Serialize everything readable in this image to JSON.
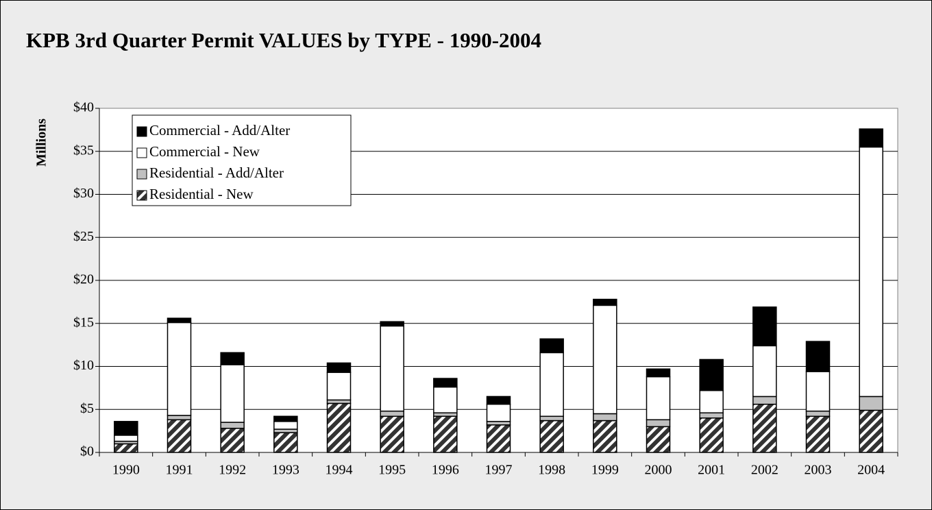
{
  "chart_data": {
    "type": "bar",
    "title": "KPB 3rd Quarter Permit VALUES by TYPE - 1990-2004",
    "ylabel": "Millions",
    "categories": [
      "1990",
      "1991",
      "1992",
      "1993",
      "1994",
      "1995",
      "1996",
      "1997",
      "1998",
      "1999",
      "2000",
      "2001",
      "2002",
      "2003",
      "2004"
    ],
    "series": [
      {
        "name": "Residential - New",
        "color": "#333333",
        "hatch": true,
        "values": [
          1.0,
          3.8,
          2.8,
          2.3,
          5.7,
          4.2,
          4.2,
          3.2,
          3.7,
          3.7,
          3.0,
          4.0,
          5.6,
          4.2,
          4.9
        ]
      },
      {
        "name": "Residential - Add/Alter",
        "color": "#c0c0c0",
        "values": [
          0.3,
          0.5,
          0.7,
          0.4,
          0.4,
          0.6,
          0.4,
          0.4,
          0.5,
          0.8,
          0.8,
          0.6,
          0.9,
          0.6,
          1.6
        ]
      },
      {
        "name": "Commercial - New",
        "color": "#ffffff",
        "values": [
          0.7,
          10.8,
          6.7,
          0.9,
          3.2,
          9.9,
          3.0,
          2.0,
          7.4,
          12.6,
          5.0,
          2.6,
          5.9,
          4.6,
          29.0
        ]
      },
      {
        "name": "Commercial - Add/Alter",
        "color": "#000000",
        "values": [
          1.6,
          0.5,
          1.4,
          0.6,
          1.1,
          0.5,
          1.0,
          0.9,
          1.6,
          0.7,
          0.9,
          3.6,
          4.5,
          3.5,
          2.1
        ]
      }
    ],
    "stacked": true,
    "ylim": [
      0,
      40
    ],
    "yticks": [
      {
        "value": 0,
        "label": "$0"
      },
      {
        "value": 5,
        "label": "$5"
      },
      {
        "value": 10,
        "label": "$10"
      },
      {
        "value": 15,
        "label": "$15"
      },
      {
        "value": 20,
        "label": "$20"
      },
      {
        "value": 25,
        "label": "$25"
      },
      {
        "value": 30,
        "label": "$30"
      },
      {
        "value": 35,
        "label": "$35"
      },
      {
        "value": 40,
        "label": "$40"
      }
    ],
    "grid": true,
    "legend": "top-left"
  }
}
